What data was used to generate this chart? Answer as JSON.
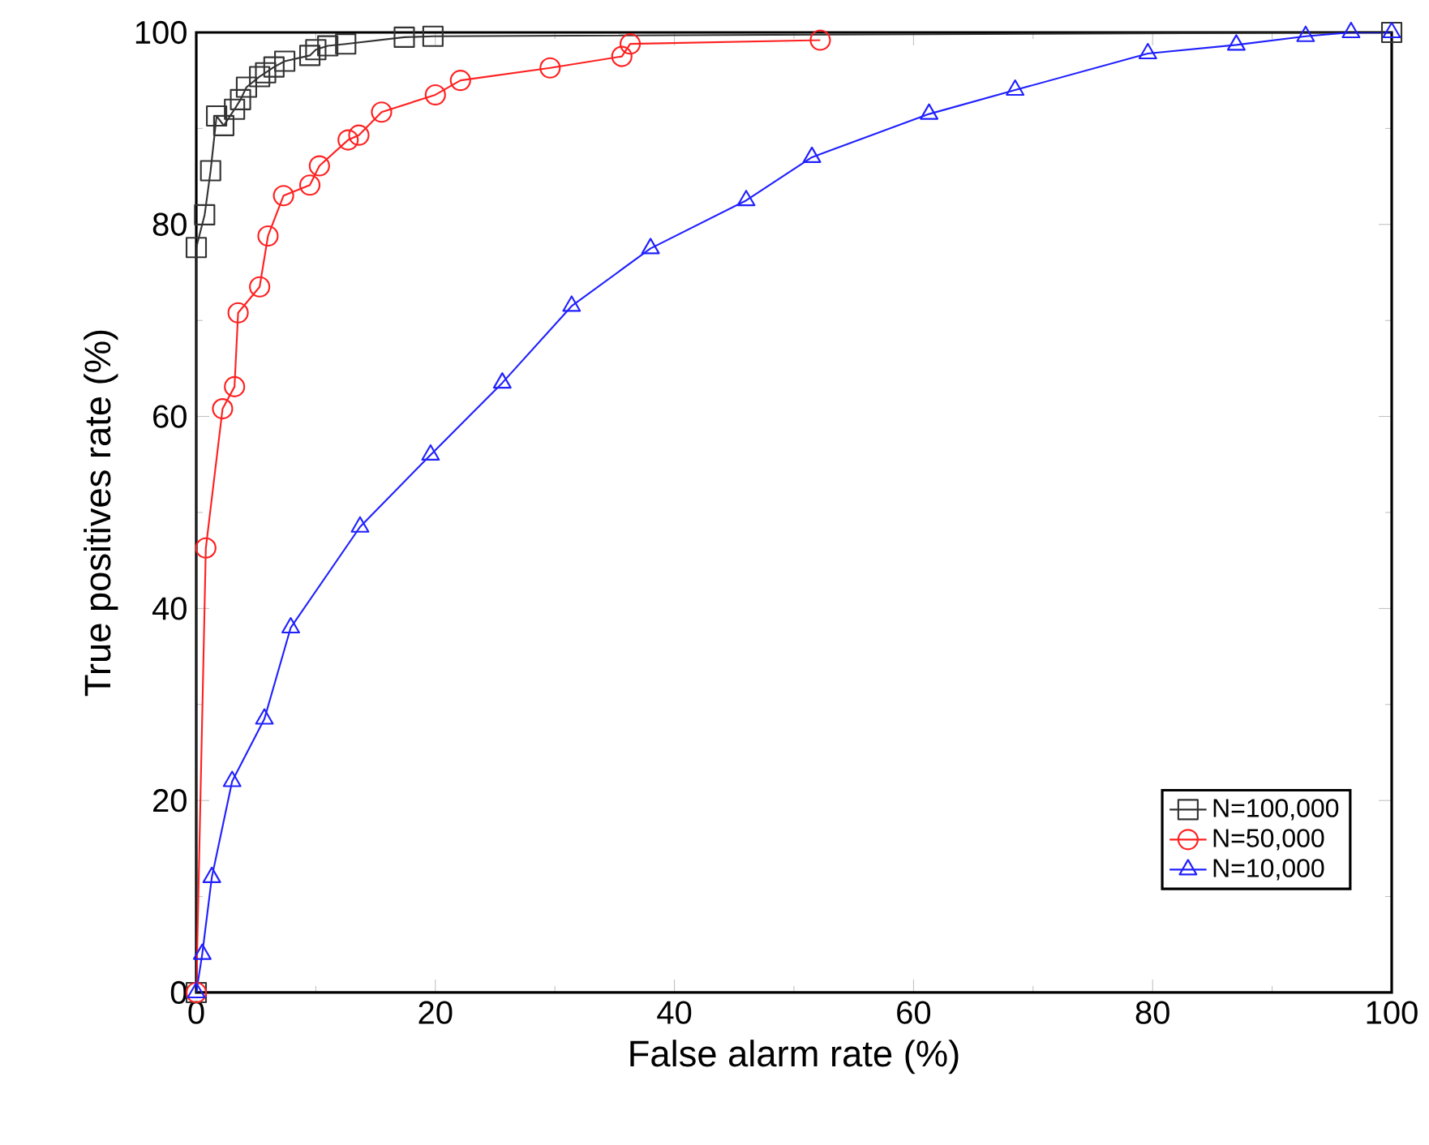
{
  "chart_data": {
    "type": "line",
    "xlabel": "False alarm rate (%)",
    "ylabel": "True positives rate (%)",
    "xlim": [
      0,
      100
    ],
    "ylim": [
      0,
      100
    ],
    "xticks": [
      0,
      20,
      40,
      60,
      80,
      100
    ],
    "yticks": [
      0,
      20,
      40,
      60,
      80,
      100
    ],
    "grid": false,
    "legend": "bottom right",
    "line_style": "solid",
    "series": [
      {
        "name": "N=100,000",
        "color": "#333333",
        "marker": "square",
        "x": [
          0,
          0,
          0.7,
          1.2,
          1.7,
          2.3,
          3.2,
          3.7,
          4.2,
          5.3,
          5.8,
          6.5,
          7.4,
          9.5,
          10,
          11,
          12.5,
          17.4,
          19.8,
          100
        ],
        "values": [
          0,
          77.6,
          81,
          85.6,
          91.3,
          90.3,
          92,
          93,
          94.3,
          95.4,
          95.8,
          96.4,
          97,
          97.6,
          98.2,
          98.6,
          98.8,
          99.5,
          99.6,
          100
        ]
      },
      {
        "name": "N=50,000",
        "color": "#ff2020",
        "marker": "circle",
        "x": [
          0,
          0.8,
          2.2,
          3.2,
          3.5,
          5.3,
          6,
          7.3,
          9.5,
          10.3,
          12.7,
          13.6,
          15.5,
          20,
          22.1,
          29.6,
          35.6,
          36.3,
          52.2
        ],
        "values": [
          0,
          46.3,
          60.8,
          63.1,
          70.8,
          73.5,
          78.8,
          83,
          84.1,
          86.1,
          88.8,
          89.3,
          91.7,
          93.5,
          95,
          96.3,
          97.5,
          98.8,
          99.2
        ]
      },
      {
        "name": "N=10,000",
        "color": "#2020ff",
        "marker": "triangle",
        "x": [
          0,
          0.5,
          1.3,
          3,
          5.7,
          7.9,
          13.7,
          19.6,
          25.6,
          31.4,
          38,
          46,
          51.5,
          61.3,
          68.5,
          79.6,
          87,
          92.8,
          96.6,
          100
        ],
        "values": [
          0,
          4,
          12,
          22,
          28.5,
          38,
          48.5,
          56,
          63.5,
          71.5,
          77.5,
          82.5,
          87,
          91.5,
          94,
          97.8,
          98.7,
          99.6,
          100,
          100
        ]
      }
    ]
  }
}
